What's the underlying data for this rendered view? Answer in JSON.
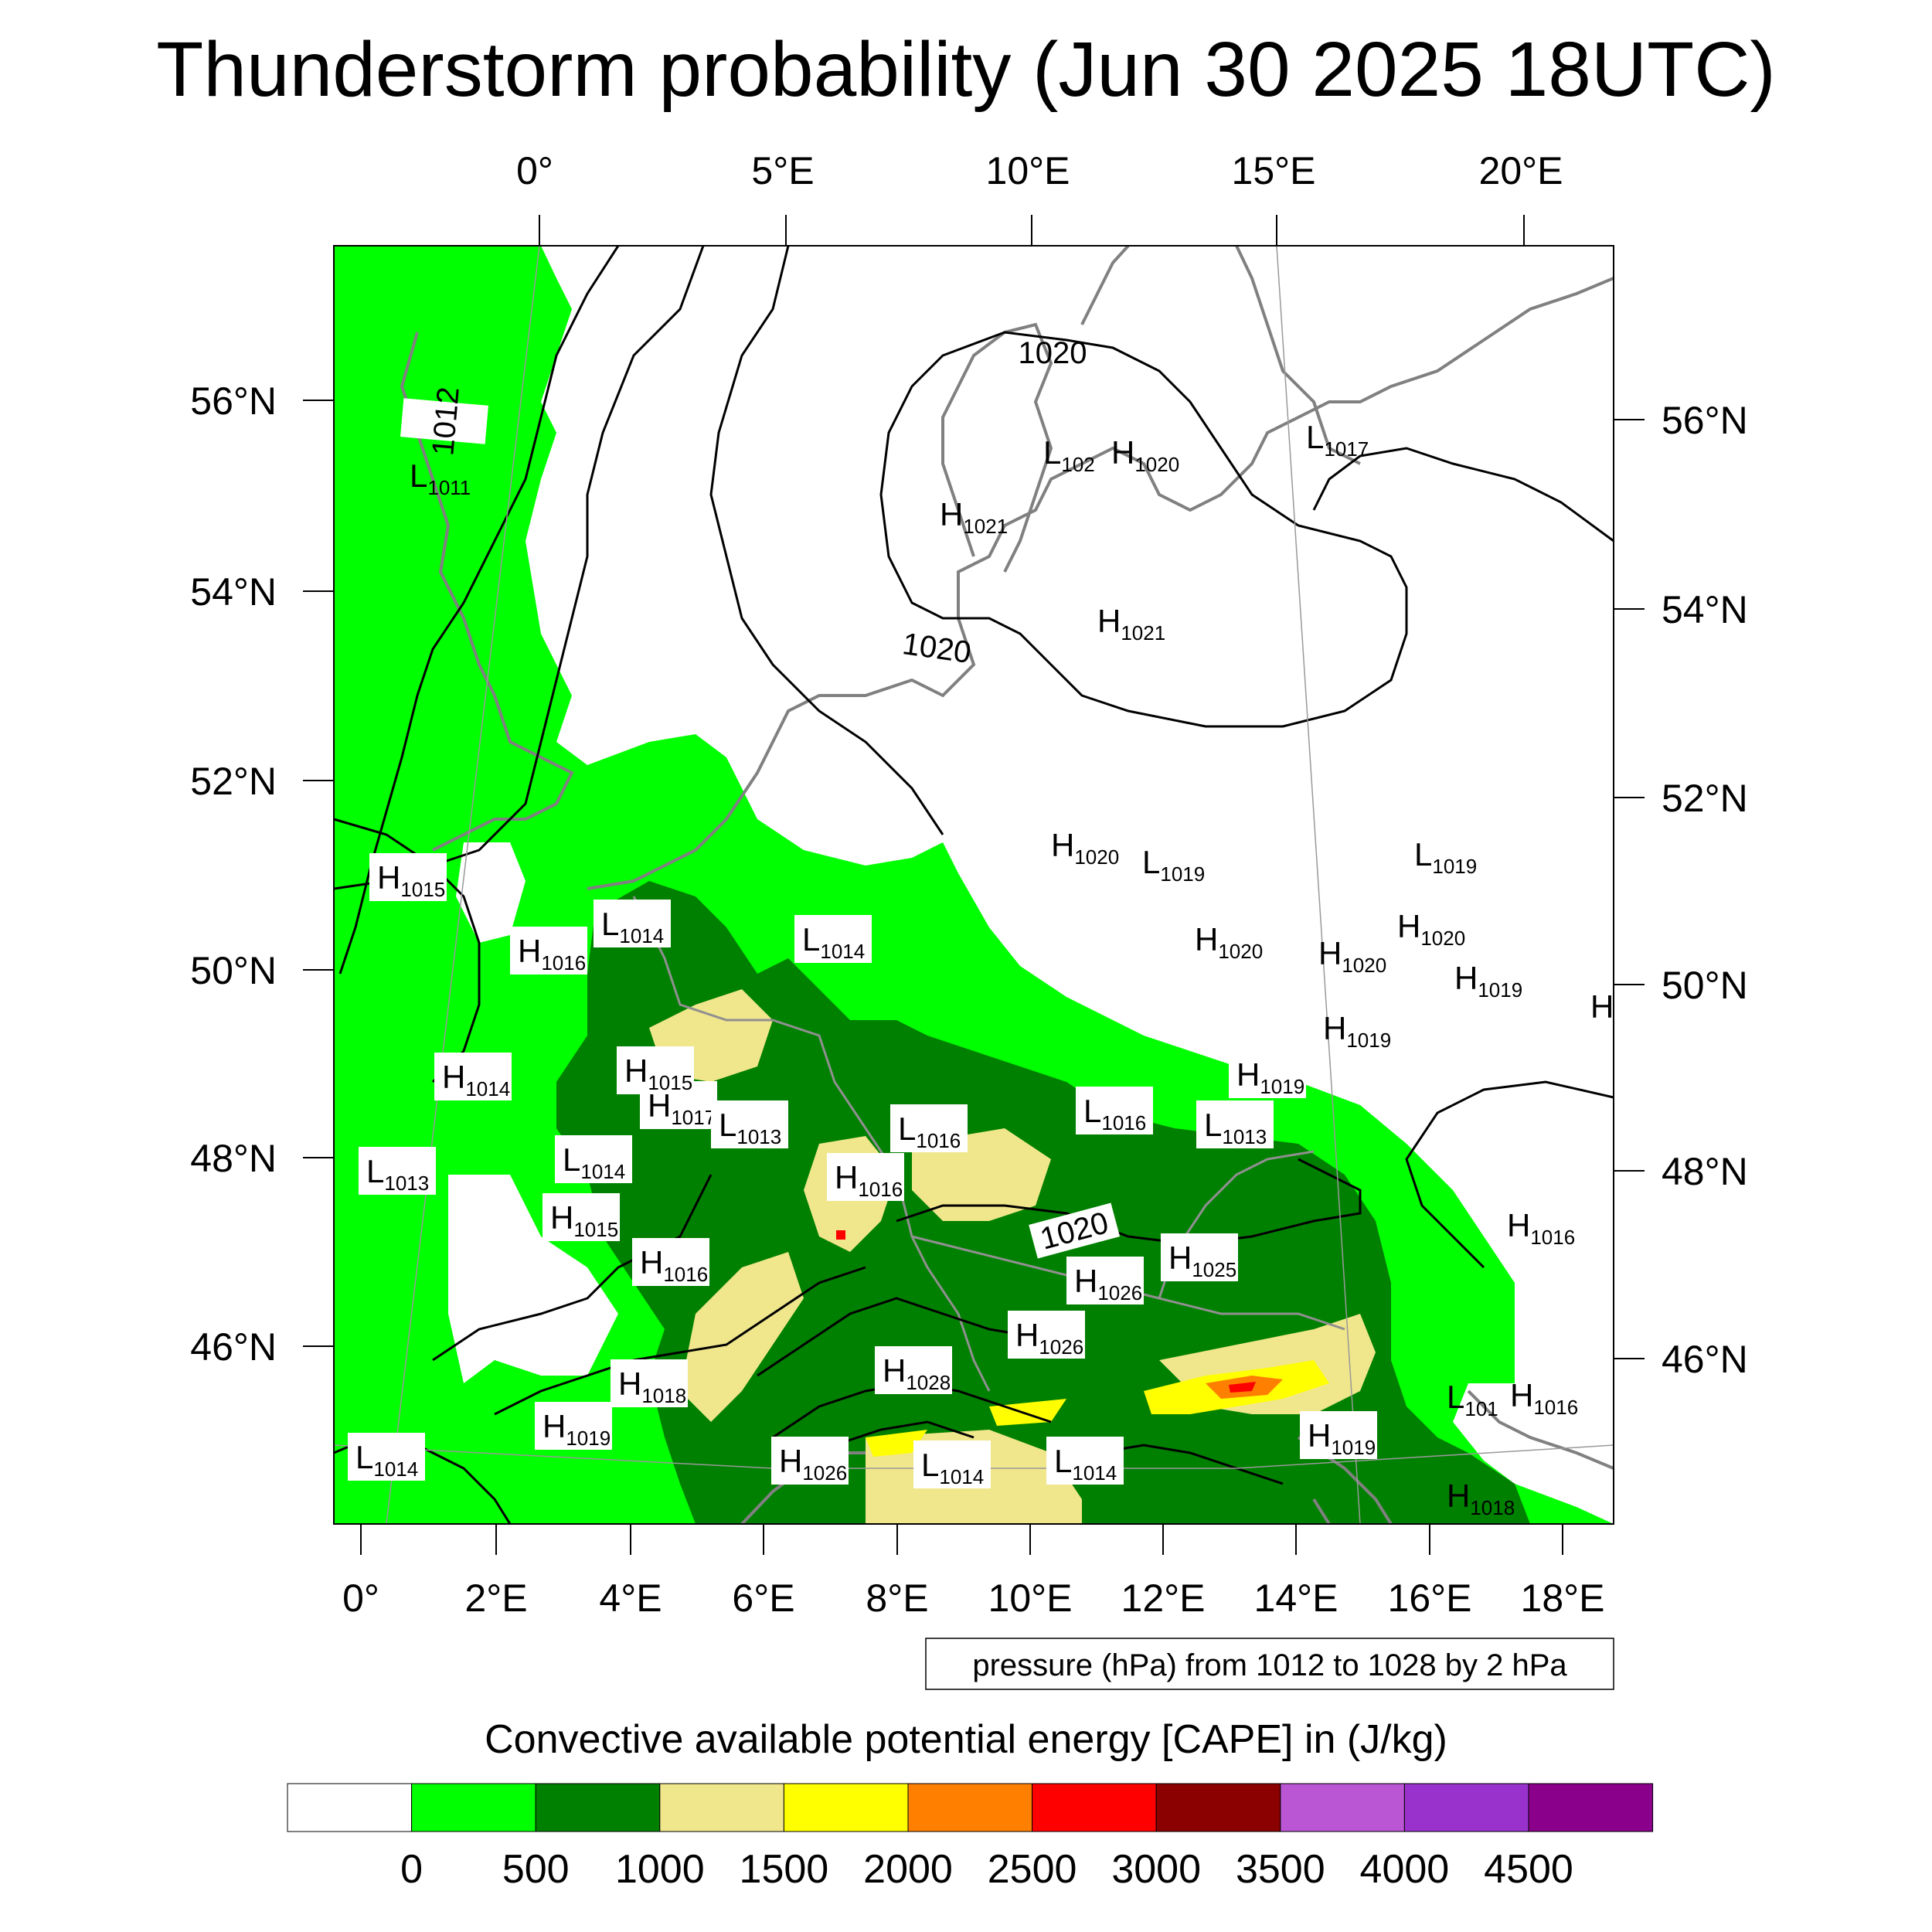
{
  "title": "Thunderstorm probability (Jun 30 2025 18UTC)",
  "top_axis_labels": [
    "0°",
    "5°E",
    "10°E",
    "15°E",
    "20°E"
  ],
  "bottom_axis_labels": [
    "0°",
    "2°E",
    "4°E",
    "6°E",
    "8°E",
    "10°E",
    "12°E",
    "14°E",
    "16°E",
    "18°E"
  ],
  "left_axis_labels": [
    "56°N",
    "54°N",
    "52°N",
    "50°N",
    "48°N",
    "46°N"
  ],
  "right_axis_labels": [
    "56°N",
    "54°N",
    "52°N",
    "50°N",
    "48°N",
    "46°N"
  ],
  "pressure_note": "pressure (hPa) from 1012 to 1028 by 2 hPa",
  "contour_labels": [
    "1012",
    "1020",
    "1020",
    "1020"
  ],
  "pressure_centers": [
    {
      "t": "L",
      "v": "1011"
    },
    {
      "t": "L",
      "v": "1014"
    },
    {
      "t": "H",
      "v": "1015"
    },
    {
      "t": "H",
      "v": "1016"
    },
    {
      "t": "L",
      "v": "1014"
    },
    {
      "t": "H",
      "v": "1017"
    },
    {
      "t": "H",
      "v": "1014"
    },
    {
      "t": "H",
      "v": "1015"
    },
    {
      "t": "L",
      "v": "1013"
    },
    {
      "t": "L",
      "v": "1013"
    },
    {
      "t": "L",
      "v": "1016"
    },
    {
      "t": "L",
      "v": "1016"
    },
    {
      "t": "L",
      "v": "1013"
    },
    {
      "t": "L",
      "v": "1014"
    },
    {
      "t": "H",
      "v": "1016"
    },
    {
      "t": "H",
      "v": "1015"
    },
    {
      "t": "H",
      "v": "1016"
    },
    {
      "t": "H",
      "v": "1025"
    },
    {
      "t": "H",
      "v": "1026"
    },
    {
      "t": "H",
      "v": "1026"
    },
    {
      "t": "H",
      "v": "1028"
    },
    {
      "t": "H",
      "v": "1018"
    },
    {
      "t": "H",
      "v": "1019"
    },
    {
      "t": "L",
      "v": "1014"
    },
    {
      "t": "H",
      "v": "1026"
    },
    {
      "t": "L",
      "v": "1014"
    },
    {
      "t": "L",
      "v": "1014"
    },
    {
      "t": "H",
      "v": "1019"
    },
    {
      "t": "H",
      "v": "1019"
    },
    {
      "t": "L",
      "v": "102"
    },
    {
      "t": "H",
      "v": "1020"
    },
    {
      "t": "H",
      "v": "1021"
    },
    {
      "t": "H",
      "v": "1021"
    },
    {
      "t": "L",
      "v": "1017"
    },
    {
      "t": "H",
      "v": "1020"
    },
    {
      "t": "L",
      "v": "1019"
    },
    {
      "t": "L",
      "v": "1019"
    },
    {
      "t": "H",
      "v": "1020"
    },
    {
      "t": "H",
      "v": "1020"
    },
    {
      "t": "H",
      "v": "1019"
    },
    {
      "t": "H",
      "v": "1016"
    },
    {
      "t": "H",
      "v": "1016"
    },
    {
      "t": "L",
      "v": "101"
    },
    {
      "t": "H",
      "v": "1020"
    },
    {
      "t": "H",
      "v": ""
    },
    {
      "t": "H",
      "v": "1019"
    },
    {
      "t": "H",
      "v": "1018"
    }
  ],
  "colorbar": {
    "title": "Convective available potential energy [CAPE] in (J/kg)",
    "colors": [
      "#ffffff",
      "#00ff00",
      "#008000",
      "#f0e68c",
      "#ffff00",
      "#ff8000",
      "#ff0000",
      "#8b0000",
      "#ba55d3",
      "#9932cc",
      "#8b008b"
    ],
    "tick_labels": [
      "0",
      "500",
      "1000",
      "1500",
      "2000",
      "2500",
      "3000",
      "3500",
      "4000",
      "4500"
    ]
  },
  "cape_colors": {
    "white": "#ffffff",
    "green": "#00ff00",
    "darkgreen": "#008000",
    "khaki": "#f0e68c",
    "yellow": "#ffff00",
    "orange": "#ff8000",
    "red": "#ff0000"
  }
}
